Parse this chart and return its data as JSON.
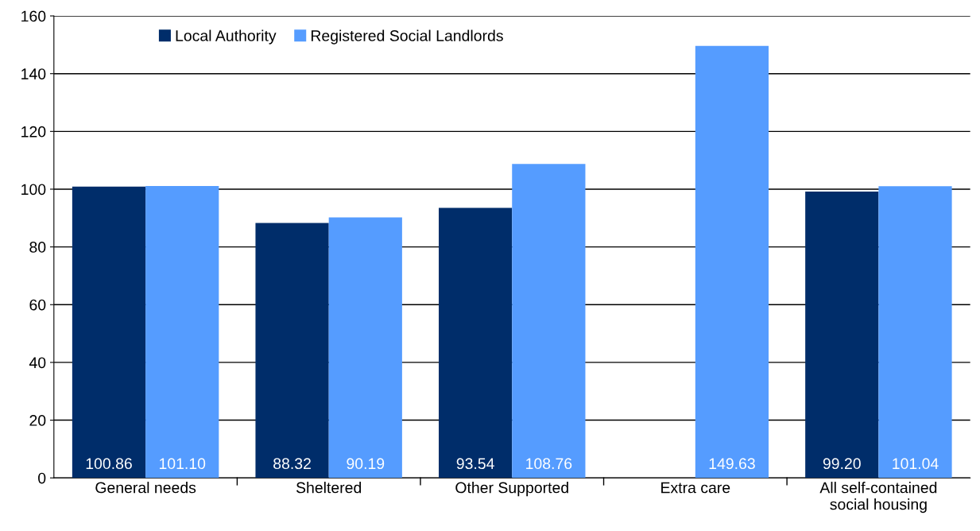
{
  "chart_data": {
    "type": "bar",
    "categories": [
      "General needs",
      "Sheltered",
      "Other Supported",
      "Extra care",
      "All self-contained\nsocial housing"
    ],
    "series": [
      {
        "name": "Local Authority",
        "color": "#002d6a",
        "values": [
          100.86,
          88.32,
          93.54,
          null,
          99.2
        ],
        "value_labels": [
          "100.86",
          "88.32",
          "93.54",
          null,
          "99.20"
        ]
      },
      {
        "name": "Registered Social Landlords",
        "color": "#559cff",
        "values": [
          101.1,
          90.19,
          108.76,
          149.63,
          101.04
        ],
        "value_labels": [
          "101.10",
          "90.19",
          "108.76",
          "149.63",
          "101.04"
        ]
      }
    ],
    "ylim": [
      0,
      160
    ],
    "yticks": [
      0,
      20,
      40,
      60,
      80,
      100,
      120,
      140,
      160
    ],
    "grid": "y",
    "legend": "top left"
  }
}
